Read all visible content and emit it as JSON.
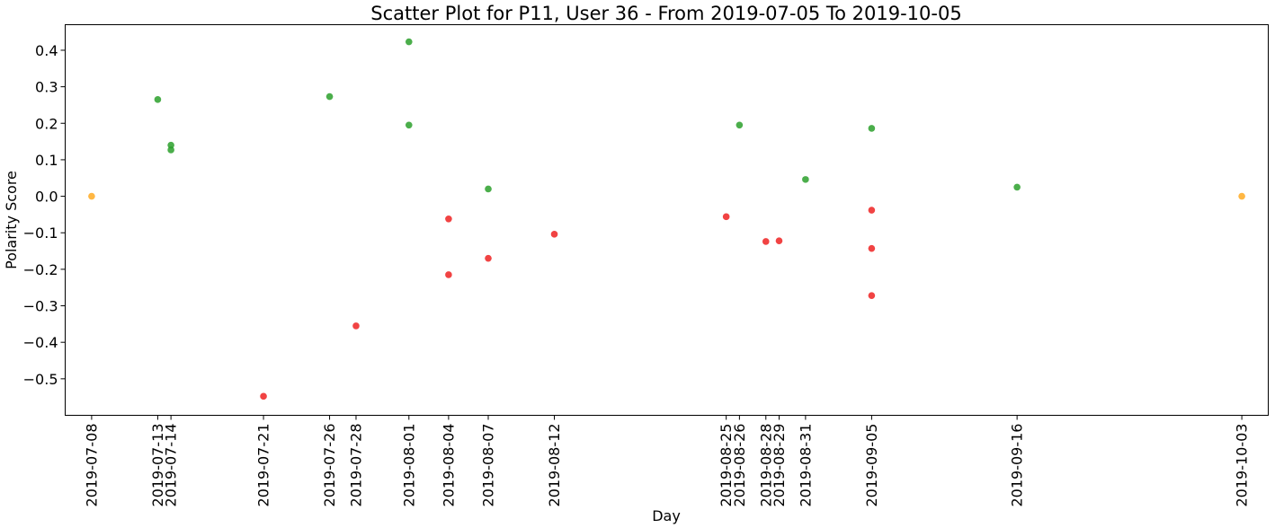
{
  "chart_data": {
    "type": "scatter",
    "title": "Scatter Plot for P11, User 36 - From 2019-07-05 To 2019-10-05",
    "xlabel": "Day",
    "ylabel": "Polarity Score",
    "xlim": [
      "2019-07-06",
      "2019-10-05"
    ],
    "ylim": [
      -0.6,
      0.47
    ],
    "grid": false,
    "yticks": [
      -0.5,
      -0.4,
      -0.3,
      -0.2,
      -0.1,
      0.0,
      0.1,
      0.2,
      0.3,
      0.4
    ],
    "ytick_labels": [
      "−0.5",
      "−0.4",
      "−0.3",
      "−0.2",
      "−0.1",
      "0.0",
      "0.1",
      "0.2",
      "0.3",
      "0.4"
    ],
    "xticks": [
      "2019-07-08",
      "2019-07-13",
      "2019-07-14",
      "2019-07-21",
      "2019-07-26",
      "2019-07-28",
      "2019-08-01",
      "2019-08-04",
      "2019-08-07",
      "2019-08-12",
      "2019-08-25",
      "2019-08-26",
      "2019-08-28",
      "2019-08-29",
      "2019-08-31",
      "2019-09-05",
      "2019-09-16",
      "2019-10-03"
    ],
    "colors": {
      "positive": "#2ca02c",
      "negative": "#ee2222",
      "neutral": "#ffaa22"
    },
    "points": [
      {
        "x": "2019-07-08",
        "y": 0.0,
        "sentiment": "neutral"
      },
      {
        "x": "2019-07-13",
        "y": 0.265,
        "sentiment": "positive"
      },
      {
        "x": "2019-07-14",
        "y": 0.14,
        "sentiment": "positive"
      },
      {
        "x": "2019-07-14",
        "y": 0.127,
        "sentiment": "positive"
      },
      {
        "x": "2019-07-21",
        "y": -0.548,
        "sentiment": "negative"
      },
      {
        "x": "2019-07-26",
        "y": 0.273,
        "sentiment": "positive"
      },
      {
        "x": "2019-07-28",
        "y": -0.355,
        "sentiment": "negative"
      },
      {
        "x": "2019-08-01",
        "y": 0.423,
        "sentiment": "positive"
      },
      {
        "x": "2019-08-01",
        "y": 0.195,
        "sentiment": "positive"
      },
      {
        "x": "2019-08-04",
        "y": -0.062,
        "sentiment": "negative"
      },
      {
        "x": "2019-08-04",
        "y": -0.215,
        "sentiment": "negative"
      },
      {
        "x": "2019-08-07",
        "y": 0.02,
        "sentiment": "positive"
      },
      {
        "x": "2019-08-07",
        "y": -0.17,
        "sentiment": "negative"
      },
      {
        "x": "2019-08-12",
        "y": -0.104,
        "sentiment": "negative"
      },
      {
        "x": "2019-08-25",
        "y": -0.056,
        "sentiment": "negative"
      },
      {
        "x": "2019-08-26",
        "y": 0.195,
        "sentiment": "positive"
      },
      {
        "x": "2019-08-28",
        "y": -0.124,
        "sentiment": "negative"
      },
      {
        "x": "2019-08-29",
        "y": -0.122,
        "sentiment": "negative"
      },
      {
        "x": "2019-08-31",
        "y": 0.046,
        "sentiment": "positive"
      },
      {
        "x": "2019-09-05",
        "y": 0.186,
        "sentiment": "positive"
      },
      {
        "x": "2019-09-05",
        "y": -0.038,
        "sentiment": "negative"
      },
      {
        "x": "2019-09-05",
        "y": -0.143,
        "sentiment": "negative"
      },
      {
        "x": "2019-09-05",
        "y": -0.272,
        "sentiment": "negative"
      },
      {
        "x": "2019-09-16",
        "y": 0.025,
        "sentiment": "positive"
      },
      {
        "x": "2019-10-03",
        "y": 0.0,
        "sentiment": "neutral"
      }
    ]
  }
}
